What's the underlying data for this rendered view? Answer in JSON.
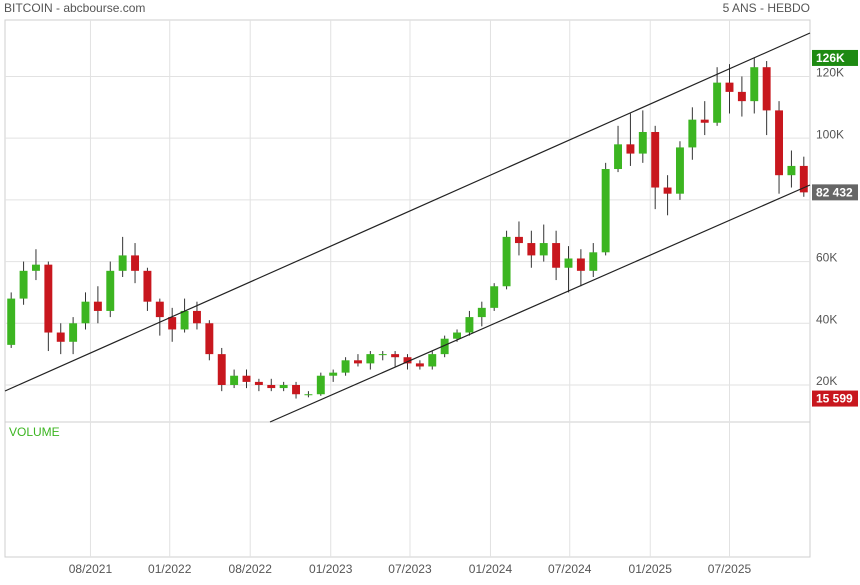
{
  "chart_data": {
    "type": "candlestick",
    "title": "BITCOIN - abcbourse.com",
    "subtitle": "5 ANS - HEBDO",
    "volume_label": "VOLUME",
    "up_color": "#3cb521",
    "down_color": "#c8171e",
    "grid": true,
    "xlim": [
      0,
      65
    ],
    "xticks": [
      {
        "value": 6.9,
        "label": "08/2021"
      },
      {
        "value": 13.3,
        "label": "01/2022"
      },
      {
        "value": 19.8,
        "label": "08/2022"
      },
      {
        "value": 26.3,
        "label": "01/2023"
      },
      {
        "value": 32.7,
        "label": "07/2023"
      },
      {
        "value": 39.2,
        "label": "01/2024"
      },
      {
        "value": 45.6,
        "label": "07/2024"
      },
      {
        "value": 52.1,
        "label": "01/2025"
      },
      {
        "value": 58.5,
        "label": "07/2025"
      }
    ],
    "ylim": [
      8000,
      138300
    ],
    "yticks": [
      {
        "value": 20000,
        "label": "20K"
      },
      {
        "value": 40000,
        "label": "40K"
      },
      {
        "value": 60000,
        "label": "60K"
      },
      {
        "value": 80000,
        "label": "80K"
      },
      {
        "value": 100000,
        "label": "100K"
      },
      {
        "value": 120000,
        "label": "120K"
      }
    ],
    "high_marker": {
      "value": 126000,
      "label": "126K",
      "color": "#1e8a12"
    },
    "last_marker": {
      "value": 82432,
      "label": "82 432",
      "color": "#666666"
    },
    "low_marker": {
      "value": 15599,
      "label": "15 599",
      "color": "#c8171e"
    },
    "open": [
      33000,
      48000,
      57000,
      59000,
      37000,
      34000,
      40000,
      47000,
      44000,
      57000,
      62000,
      57000,
      47000,
      42000,
      38000,
      44000,
      40000,
      30000,
      20000,
      23000,
      21000,
      20000,
      19000,
      20000,
      17000,
      17000,
      23000,
      24000,
      28000,
      27000,
      30000,
      30000,
      29000,
      27000,
      26000,
      30000,
      35000,
      37000,
      42000,
      45000,
      52000,
      68000,
      66000,
      62000,
      66000,
      58000,
      61000,
      57000,
      63000,
      90000,
      98000,
      95000,
      102000,
      84000,
      82000,
      97000,
      106000,
      105000,
      118000,
      115000,
      112000,
      123000,
      109000,
      88000,
      91000
    ],
    "high": [
      50000,
      60000,
      64000,
      60000,
      40000,
      42000,
      50000,
      52000,
      60000,
      68000,
      66000,
      58000,
      48000,
      45000,
      48000,
      47000,
      41000,
      32000,
      25000,
      25000,
      22000,
      22000,
      21000,
      21000,
      18000,
      24000,
      25000,
      29000,
      30000,
      31000,
      31000,
      31000,
      30000,
      28000,
      31000,
      36000,
      38000,
      44000,
      47000,
      53000,
      70000,
      73000,
      70000,
      72000,
      70000,
      65000,
      64000,
      66000,
      92000,
      104000,
      108000,
      109000,
      104000,
      88000,
      99000,
      110000,
      112000,
      123000,
      124000,
      120000,
      126000,
      125000,
      112000,
      96000,
      94000
    ],
    "low": [
      32000,
      46000,
      54000,
      31000,
      30000,
      30000,
      38000,
      40000,
      42000,
      55000,
      53000,
      44000,
      36000,
      34000,
      37000,
      38000,
      28000,
      18000,
      19000,
      19000,
      18000,
      18000,
      18000,
      15599,
      16000,
      16500,
      21000,
      23000,
      26000,
      25000,
      28000,
      26000,
      25000,
      25000,
      25000,
      29000,
      34000,
      36000,
      39000,
      44000,
      51000,
      62000,
      58000,
      60000,
      54000,
      50000,
      52000,
      55000,
      62000,
      89000,
      91000,
      92000,
      77000,
      75000,
      80000,
      93000,
      101000,
      104000,
      108000,
      107000,
      108000,
      101000,
      82000,
      84000,
      81000
    ],
    "close": [
      48000,
      57000,
      59000,
      37000,
      34000,
      40000,
      47000,
      44000,
      57000,
      62000,
      57000,
      47000,
      42000,
      38000,
      44000,
      40000,
      30000,
      20000,
      23000,
      21000,
      20000,
      19000,
      20000,
      17000,
      17000,
      23000,
      24000,
      28000,
      27000,
      30000,
      30000,
      29000,
      27000,
      26000,
      30000,
      35000,
      37000,
      42000,
      45000,
      52000,
      68000,
      66000,
      62000,
      66000,
      58000,
      61000,
      57000,
      63000,
      90000,
      98000,
      95000,
      102000,
      84000,
      82000,
      97000,
      106000,
      105000,
      118000,
      115000,
      112000,
      123000,
      109000,
      88000,
      91000,
      82432
    ]
  }
}
